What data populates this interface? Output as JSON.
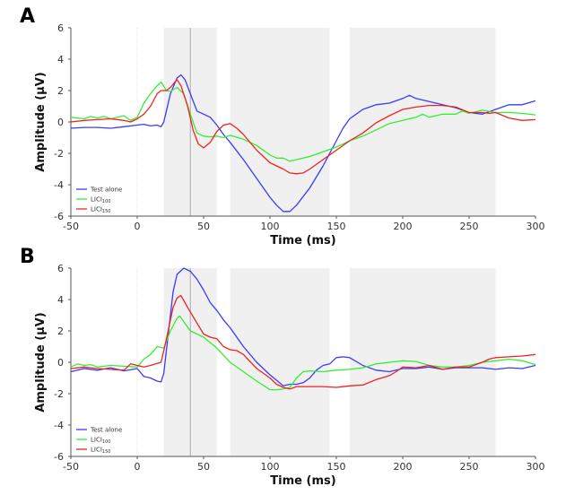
{
  "chart_data": [
    {
      "type": "line",
      "panel_label": "A",
      "xlabel": "Time (ms)",
      "ylabel": "Amplitude (µV)",
      "xlim": [
        -50,
        300
      ],
      "ylim": [
        -6,
        6
      ],
      "xticks": [
        -50,
        0,
        50,
        100,
        150,
        200,
        250,
        300
      ],
      "yticks": [
        -6,
        -4,
        -2,
        0,
        2,
        4,
        6
      ],
      "shaded_windows": [
        [
          20,
          60
        ],
        [
          70,
          145
        ],
        [
          160,
          270
        ]
      ],
      "vertical_lines": [
        0,
        40
      ],
      "legend_position": "bottom-left",
      "grid": false,
      "series": [
        {
          "name": "Test alone",
          "base": "Test alone",
          "sub": "",
          "color": "#3a3aff",
          "x": [
            -50,
            -40,
            -30,
            -20,
            -10,
            0,
            5,
            10,
            15,
            18,
            20,
            25,
            30,
            33,
            36,
            40,
            45,
            50,
            55,
            60,
            65,
            70,
            80,
            90,
            100,
            105,
            110,
            115,
            120,
            130,
            140,
            150,
            155,
            160,
            170,
            180,
            190,
            200,
            205,
            210,
            220,
            230,
            240,
            250,
            260,
            270,
            280,
            290,
            300
          ],
          "y": [
            -0.4,
            -0.35,
            -0.35,
            -0.4,
            -0.3,
            -0.2,
            -0.15,
            -0.25,
            -0.2,
            -0.3,
            0,
            1.8,
            2.8,
            3.0,
            2.7,
            1.8,
            0.7,
            0.5,
            0.3,
            -0.2,
            -0.8,
            -1.3,
            -2.4,
            -3.6,
            -4.8,
            -5.3,
            -5.7,
            -5.7,
            -5.3,
            -4.2,
            -2.8,
            -1.2,
            -0.4,
            0.2,
            0.8,
            1.1,
            1.2,
            1.5,
            1.7,
            1.5,
            1.3,
            1.1,
            0.9,
            0.6,
            0.5,
            0.8,
            1.1,
            1.1,
            1.35
          ]
        },
        {
          "name": "LICI100",
          "base": "LICI",
          "sub": "100",
          "color": "#33ee33",
          "x": [
            -50,
            -40,
            -35,
            -30,
            -25,
            -20,
            -10,
            -5,
            0,
            5,
            10,
            15,
            18,
            22,
            25,
            30,
            35,
            40,
            45,
            50,
            55,
            60,
            65,
            70,
            80,
            90,
            100,
            105,
            110,
            115,
            120,
            130,
            140,
            150,
            160,
            170,
            180,
            190,
            200,
            210,
            215,
            220,
            230,
            240,
            245,
            250,
            260,
            270,
            280,
            290,
            300
          ],
          "y": [
            0.3,
            0.2,
            0.35,
            0.25,
            0.35,
            0.2,
            0.4,
            0.1,
            0.3,
            1.2,
            1.8,
            2.3,
            2.55,
            2.0,
            1.95,
            2.2,
            1.8,
            0.5,
            -0.7,
            -0.9,
            -0.95,
            -0.9,
            -1.0,
            -0.85,
            -1.1,
            -1.5,
            -2.1,
            -2.3,
            -2.3,
            -2.5,
            -2.4,
            -2.2,
            -1.9,
            -1.6,
            -1.2,
            -0.9,
            -0.5,
            -0.1,
            0.1,
            0.3,
            0.5,
            0.3,
            0.5,
            0.5,
            0.7,
            0.55,
            0.75,
            0.6,
            0.6,
            0.55,
            0.45
          ]
        },
        {
          "name": "LICI150",
          "base": "LICI",
          "sub": "150",
          "color": "#ee2222",
          "x": [
            -50,
            -40,
            -30,
            -20,
            -10,
            -5,
            0,
            5,
            10,
            15,
            18,
            22,
            25,
            30,
            33,
            38,
            42,
            46,
            50,
            55,
            60,
            65,
            70,
            75,
            80,
            90,
            100,
            110,
            115,
            120,
            125,
            130,
            140,
            150,
            160,
            170,
            180,
            190,
            200,
            210,
            220,
            230,
            240,
            250,
            260,
            265,
            270,
            280,
            290,
            300
          ],
          "y": [
            0,
            0.1,
            0.15,
            0.2,
            0.1,
            0,
            0.2,
            0.5,
            1.0,
            1.8,
            2.0,
            2.0,
            2.2,
            2.7,
            2.3,
            1.0,
            -0.5,
            -1.4,
            -1.65,
            -1.3,
            -0.6,
            -0.2,
            -0.1,
            -0.4,
            -0.8,
            -1.8,
            -2.6,
            -3.0,
            -3.25,
            -3.3,
            -3.25,
            -3.0,
            -2.4,
            -1.8,
            -1.2,
            -0.7,
            -0.05,
            0.4,
            0.8,
            0.95,
            1.05,
            1.05,
            0.95,
            0.6,
            0.6,
            0.55,
            0.6,
            0.25,
            0.1,
            0.15
          ]
        }
      ]
    },
    {
      "type": "line",
      "panel_label": "B",
      "xlabel": "Time (ms)",
      "ylabel": "Amplitude (µV)",
      "xlim": [
        -50,
        300
      ],
      "ylim": [
        -6,
        6
      ],
      "xticks": [
        -50,
        0,
        50,
        100,
        150,
        200,
        250,
        300
      ],
      "yticks": [
        -6,
        -4,
        -2,
        0,
        2,
        4,
        6
      ],
      "shaded_windows": [
        [
          20,
          60
        ],
        [
          70,
          145
        ],
        [
          160,
          270
        ]
      ],
      "vertical_lines": [
        0,
        40
      ],
      "legend_position": "bottom-left",
      "grid": false,
      "series": [
        {
          "name": "Test alone",
          "base": "Test alone",
          "sub": "",
          "color": "#3a3aff",
          "x": [
            -50,
            -40,
            -30,
            -20,
            -10,
            0,
            5,
            10,
            15,
            18,
            20,
            23,
            27,
            30,
            35,
            40,
            45,
            50,
            55,
            60,
            65,
            70,
            75,
            80,
            90,
            100,
            110,
            115,
            120,
            125,
            130,
            135,
            140,
            145,
            150,
            155,
            160,
            170,
            180,
            190,
            200,
            210,
            220,
            230,
            240,
            250,
            260,
            270,
            280,
            290,
            300
          ],
          "y": [
            -0.6,
            -0.4,
            -0.5,
            -0.35,
            -0.55,
            -0.4,
            -0.9,
            -1.0,
            -1.2,
            -1.25,
            -0.7,
            1.5,
            4.5,
            5.6,
            6.0,
            5.8,
            5.3,
            4.6,
            3.8,
            3.3,
            2.7,
            2.2,
            1.6,
            1.0,
            0.0,
            -0.8,
            -1.5,
            -1.4,
            -1.4,
            -1.3,
            -1.0,
            -0.5,
            -0.2,
            -0.1,
            0.3,
            0.35,
            0.3,
            -0.2,
            -0.5,
            -0.6,
            -0.4,
            -0.4,
            -0.3,
            -0.45,
            -0.35,
            -0.35,
            -0.35,
            -0.45,
            -0.35,
            -0.4,
            -0.2
          ]
        },
        {
          "name": "LICI100",
          "base": "LICI",
          "sub": "100",
          "color": "#33ee33",
          "x": [
            -50,
            -45,
            -40,
            -35,
            -30,
            -20,
            -10,
            0,
            5,
            10,
            15,
            20,
            25,
            30,
            32,
            35,
            40,
            45,
            50,
            60,
            70,
            80,
            90,
            100,
            105,
            110,
            115,
            120,
            125,
            130,
            140,
            150,
            160,
            170,
            180,
            190,
            200,
            210,
            220,
            230,
            240,
            250,
            260,
            270,
            280,
            290,
            300
          ],
          "y": [
            -0.3,
            -0.1,
            -0.2,
            -0.15,
            -0.3,
            -0.2,
            -0.25,
            -0.3,
            0.2,
            0.5,
            1.0,
            0.9,
            2.0,
            2.8,
            2.95,
            2.6,
            2.0,
            1.8,
            1.6,
            0.9,
            0.0,
            -0.6,
            -1.2,
            -1.75,
            -1.75,
            -1.7,
            -1.6,
            -1.0,
            -0.6,
            -0.55,
            -0.6,
            -0.5,
            -0.45,
            -0.35,
            -0.1,
            0,
            0.1,
            0.05,
            -0.2,
            -0.3,
            -0.3,
            -0.2,
            0,
            0.1,
            0.2,
            0.1,
            -0.15
          ]
        },
        {
          "name": "LICI150",
          "base": "LICI",
          "sub": "150",
          "color": "#ee2222",
          "x": [
            -50,
            -40,
            -30,
            -20,
            -10,
            -5,
            0,
            5,
            10,
            18,
            22,
            27,
            30,
            33,
            38,
            45,
            50,
            55,
            60,
            65,
            70,
            75,
            80,
            90,
            100,
            105,
            110,
            115,
            120,
            130,
            140,
            150,
            160,
            170,
            180,
            190,
            195,
            200,
            210,
            220,
            230,
            240,
            250,
            260,
            265,
            270,
            280,
            290,
            300
          ],
          "y": [
            -0.4,
            -0.3,
            -0.4,
            -0.45,
            -0.5,
            -0.1,
            -0.2,
            -0.3,
            -0.2,
            0,
            1.5,
            3.5,
            4.1,
            4.25,
            3.5,
            2.5,
            1.8,
            1.6,
            1.5,
            1.0,
            0.8,
            0.75,
            0.5,
            -0.4,
            -1.0,
            -1.4,
            -1.6,
            -1.7,
            -1.55,
            -1.55,
            -1.55,
            -1.6,
            -1.5,
            -1.45,
            -1.1,
            -0.85,
            -0.6,
            -0.3,
            -0.35,
            -0.2,
            -0.45,
            -0.3,
            -0.3,
            0.0,
            0.2,
            0.3,
            0.35,
            0.4,
            0.5
          ]
        }
      ]
    }
  ]
}
